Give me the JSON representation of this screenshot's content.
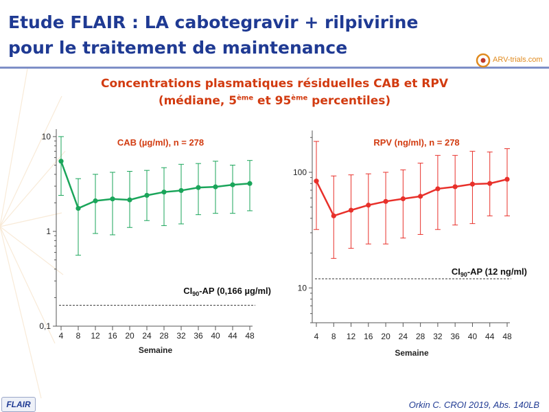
{
  "slide": {
    "title_line1": "Etude FLAIR : LA cabotegravir + rilpivirine",
    "title_line2": "pour le traitement de maintenance",
    "subtitle_line1": "Concentrations plasmatiques résiduelles CAB et RPV",
    "subtitle_pre": "(médiane, 5",
    "subtitle_sup1": "ème",
    "subtitle_mid": " et 95",
    "subtitle_sup2": "ème",
    "subtitle_post": " percentiles)",
    "logo_text": "ARV-trials.com",
    "badge": "FLAIR",
    "citation": "Orkin C. CROI 2019, Abs. 140LB"
  },
  "chart_data": [
    {
      "type": "line",
      "title": "CAB (µg/ml), n = 278",
      "xlabel": "Semaine",
      "ylabel": "",
      "yscale": "log",
      "ylim": [
        0.1,
        12
      ],
      "yticks": [
        {
          "v": 10,
          "label": "10"
        },
        {
          "v": 1,
          "label": "1"
        },
        {
          "v": 0.1,
          "label": "0,1"
        }
      ],
      "x": [
        4,
        8,
        12,
        16,
        20,
        24,
        28,
        32,
        36,
        40,
        44,
        48
      ],
      "median": [
        5.5,
        1.75,
        2.1,
        2.2,
        2.15,
        2.4,
        2.6,
        2.7,
        2.9,
        2.95,
        3.1,
        3.2
      ],
      "p95": [
        10,
        3.6,
        4.0,
        4.2,
        4.3,
        4.4,
        4.7,
        5.1,
        5.2,
        5.5,
        5.0,
        5.6
      ],
      "p5": [
        2.4,
        0.56,
        0.95,
        0.92,
        1.1,
        1.3,
        1.15,
        1.2,
        1.5,
        1.55,
        1.55,
        1.65
      ],
      "threshold": {
        "value": 0.166,
        "label_pre": "CI",
        "label_sub": "90",
        "label_post": "-AP (0,166 µg/ml)"
      },
      "color": "#1aa55a",
      "grid": false
    },
    {
      "type": "line",
      "title": "RPV (ng/ml), n = 278",
      "xlabel": "Semaine",
      "ylabel": "",
      "yscale": "log",
      "ylim": [
        5,
        230
      ],
      "yticks": [
        {
          "v": 100,
          "label": "100"
        },
        {
          "v": 10,
          "label": "10"
        }
      ],
      "x": [
        4,
        8,
        12,
        16,
        20,
        24,
        28,
        32,
        36,
        40,
        44,
        48
      ],
      "median": [
        84,
        42,
        47,
        52,
        56,
        59,
        62,
        72,
        75,
        79,
        80,
        87
      ],
      "p95": [
        185,
        93,
        95,
        97,
        100,
        105,
        120,
        140,
        140,
        152,
        150,
        160
      ],
      "p5": [
        32,
        18,
        22,
        24,
        24,
        27,
        29,
        32,
        35,
        36,
        42,
        42
      ],
      "threshold": {
        "value": 12,
        "label_pre": "CI",
        "label_sub": "90",
        "label_post": "-AP (12 ng/ml)"
      },
      "color": "#e8302a",
      "grid": false
    }
  ]
}
